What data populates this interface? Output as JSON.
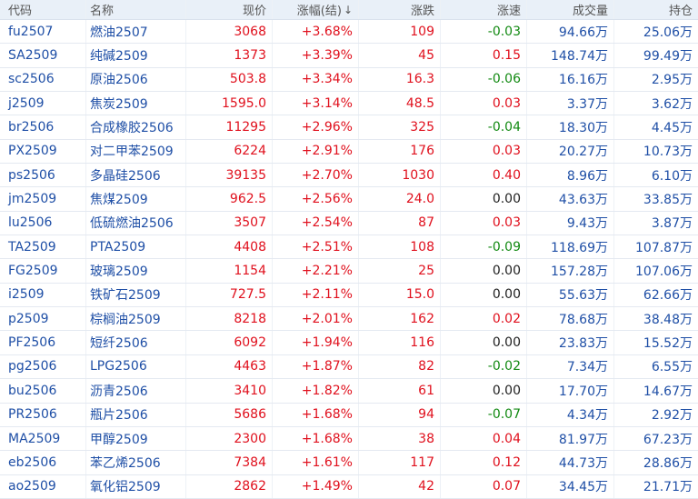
{
  "columns": {
    "code": "代码",
    "name": "名称",
    "price": "现价",
    "change_pct": "涨幅(结)",
    "change": "涨跌",
    "speed": "涨速",
    "volume": "成交量",
    "open_interest": "持仓"
  },
  "sort_icon": "↓",
  "rows": [
    {
      "code": "fu2507",
      "name": "燃油2507",
      "price": "3068",
      "change_pct": "+3.68%",
      "change": "109",
      "speed": "-0.03",
      "volume": "94.66万",
      "open_interest": "25.06万"
    },
    {
      "code": "SA2509",
      "name": "纯碱2509",
      "price": "1373",
      "change_pct": "+3.39%",
      "change": "45",
      "speed": "0.15",
      "volume": "148.74万",
      "open_interest": "99.49万"
    },
    {
      "code": "sc2506",
      "name": "原油2506",
      "price": "503.8",
      "change_pct": "+3.34%",
      "change": "16.3",
      "speed": "-0.06",
      "volume": "16.16万",
      "open_interest": "2.95万"
    },
    {
      "code": "j2509",
      "name": "焦炭2509",
      "price": "1595.0",
      "change_pct": "+3.14%",
      "change": "48.5",
      "speed": "0.03",
      "volume": "3.37万",
      "open_interest": "3.62万"
    },
    {
      "code": "br2506",
      "name": "合成橡胶2506",
      "price": "11295",
      "change_pct": "+2.96%",
      "change": "325",
      "speed": "-0.04",
      "volume": "18.30万",
      "open_interest": "4.45万"
    },
    {
      "code": "PX2509",
      "name": "对二甲苯2509",
      "price": "6224",
      "change_pct": "+2.91%",
      "change": "176",
      "speed": "0.03",
      "volume": "20.27万",
      "open_interest": "10.73万"
    },
    {
      "code": "ps2506",
      "name": "多晶硅2506",
      "price": "39135",
      "change_pct": "+2.70%",
      "change": "1030",
      "speed": "0.40",
      "volume": "8.96万",
      "open_interest": "6.10万"
    },
    {
      "code": "jm2509",
      "name": "焦煤2509",
      "price": "962.5",
      "change_pct": "+2.56%",
      "change": "24.0",
      "speed": "0.00",
      "volume": "43.63万",
      "open_interest": "33.85万"
    },
    {
      "code": "lu2506",
      "name": "低硫燃油2506",
      "price": "3507",
      "change_pct": "+2.54%",
      "change": "87",
      "speed": "0.03",
      "volume": "9.43万",
      "open_interest": "3.87万"
    },
    {
      "code": "TA2509",
      "name": "PTA2509",
      "price": "4408",
      "change_pct": "+2.51%",
      "change": "108",
      "speed": "-0.09",
      "volume": "118.69万",
      "open_interest": "107.87万"
    },
    {
      "code": "FG2509",
      "name": "玻璃2509",
      "price": "1154",
      "change_pct": "+2.21%",
      "change": "25",
      "speed": "0.00",
      "volume": "157.28万",
      "open_interest": "107.06万"
    },
    {
      "code": "i2509",
      "name": "铁矿石2509",
      "price": "727.5",
      "change_pct": "+2.11%",
      "change": "15.0",
      "speed": "0.00",
      "volume": "55.63万",
      "open_interest": "62.66万"
    },
    {
      "code": "p2509",
      "name": "棕榈油2509",
      "price": "8218",
      "change_pct": "+2.01%",
      "change": "162",
      "speed": "0.02",
      "volume": "78.68万",
      "open_interest": "38.48万"
    },
    {
      "code": "PF2506",
      "name": "短纤2506",
      "price": "6092",
      "change_pct": "+1.94%",
      "change": "116",
      "speed": "0.00",
      "volume": "23.83万",
      "open_interest": "15.52万"
    },
    {
      "code": "pg2506",
      "name": "LPG2506",
      "price": "4463",
      "change_pct": "+1.87%",
      "change": "82",
      "speed": "-0.02",
      "volume": "7.34万",
      "open_interest": "6.55万"
    },
    {
      "code": "bu2506",
      "name": "沥青2506",
      "price": "3410",
      "change_pct": "+1.82%",
      "change": "61",
      "speed": "0.00",
      "volume": "17.70万",
      "open_interest": "14.67万"
    },
    {
      "code": "PR2506",
      "name": "瓶片2506",
      "price": "5686",
      "change_pct": "+1.68%",
      "change": "94",
      "speed": "-0.07",
      "volume": "4.34万",
      "open_interest": "2.92万"
    },
    {
      "code": "MA2509",
      "name": "甲醇2509",
      "price": "2300",
      "change_pct": "+1.68%",
      "change": "38",
      "speed": "0.04",
      "volume": "81.97万",
      "open_interest": "67.23万"
    },
    {
      "code": "eb2506",
      "name": "苯乙烯2506",
      "price": "7384",
      "change_pct": "+1.61%",
      "change": "117",
      "speed": "0.12",
      "volume": "44.73万",
      "open_interest": "28.86万"
    },
    {
      "code": "ao2509",
      "name": "氧化铝2509",
      "price": "2862",
      "change_pct": "+1.49%",
      "change": "42",
      "speed": "0.07",
      "volume": "34.45万",
      "open_interest": "21.71万"
    }
  ],
  "colors": {
    "up": "#e0101d",
    "down": "#138a13",
    "flat": "#222222",
    "code": "#1f4fa6",
    "header_bg": "#e9f0f8"
  }
}
